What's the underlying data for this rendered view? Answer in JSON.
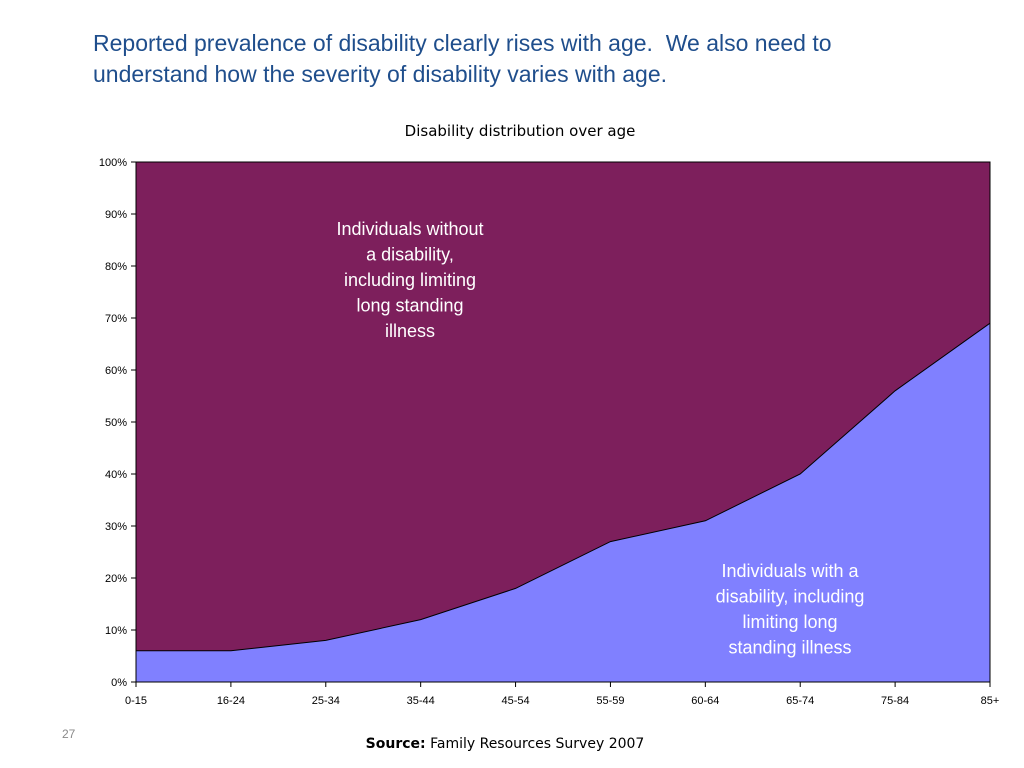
{
  "slide": {
    "title_lines": [
      "Reported prevalence of disability clearly rises with age.  We also need to",
      "understand how the severity of disability varies with age."
    ],
    "page_number": "27",
    "source_label": "Source:",
    "source_text": "Family Resources Survey 2007"
  },
  "colors": {
    "title": "#1f4e8c",
    "without_disability": "#7d1f5c",
    "with_disability": "#8080ff"
  },
  "chart_data": {
    "type": "area",
    "title": "Disability distribution over age",
    "xlabel": "",
    "ylabel": "",
    "categories": [
      "0-15",
      "16-24",
      "25-34",
      "35-44",
      "45-54",
      "55-59",
      "60-64",
      "65-74",
      "75-84",
      "85+"
    ],
    "y_ticks": [
      "0%",
      "10%",
      "20%",
      "30%",
      "40%",
      "50%",
      "60%",
      "70%",
      "80%",
      "90%",
      "100%"
    ],
    "ylim": [
      0,
      100
    ],
    "stacked_percent": true,
    "series": [
      {
        "values": [
          6,
          6,
          8,
          12,
          18,
          27,
          31,
          40,
          56,
          69
        ],
        "color": "#8080ff"
      },
      {
        "values": [
          94,
          94,
          92,
          88,
          82,
          73,
          69,
          60,
          44,
          31
        ],
        "color": "#7d1f5c"
      }
    ],
    "annotations": {
      "without_disability": [
        "Individuals without",
        "a disability,",
        "including limiting",
        "long standing",
        "illness"
      ],
      "with_disability": [
        "Individuals with a",
        "disability, including",
        "limiting long",
        "standing illness"
      ]
    },
    "grid": false,
    "legend": "none"
  }
}
